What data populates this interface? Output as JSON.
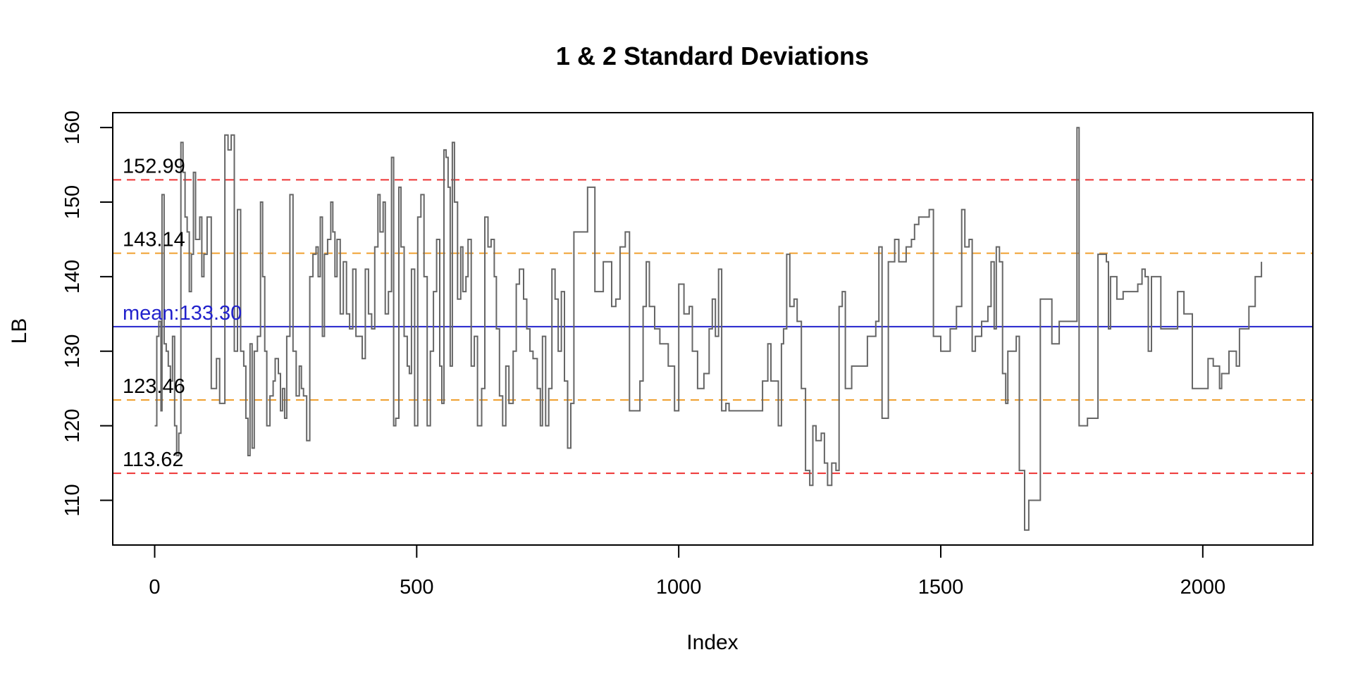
{
  "chart_data": {
    "type": "line",
    "title": "1 & 2 Standard Deviations",
    "xlabel": "Index",
    "ylabel": "LB",
    "xlim": [
      -80,
      2210
    ],
    "ylim": [
      104,
      162
    ],
    "x_ticks": [
      0,
      500,
      1000,
      1500,
      2000
    ],
    "y_ticks": [
      110,
      120,
      130,
      140,
      150,
      160
    ],
    "grid": false,
    "legend": "none",
    "series": [
      {
        "color": "#666666",
        "style": "step",
        "points": [
          [
            0,
            120
          ],
          [
            4,
            132
          ],
          [
            8,
            134
          ],
          [
            12,
            122
          ],
          [
            14,
            151
          ],
          [
            18,
            131
          ],
          [
            22,
            130
          ],
          [
            26,
            128
          ],
          [
            30,
            126
          ],
          [
            34,
            132
          ],
          [
            38,
            120
          ],
          [
            42,
            116
          ],
          [
            46,
            119
          ],
          [
            50,
            158
          ],
          [
            54,
            154
          ],
          [
            58,
            148
          ],
          [
            62,
            146
          ],
          [
            66,
            138
          ],
          [
            70,
            143
          ],
          [
            74,
            154
          ],
          [
            78,
            145
          ],
          [
            86,
            148
          ],
          [
            90,
            140
          ],
          [
            94,
            143
          ],
          [
            100,
            148
          ],
          [
            108,
            125
          ],
          [
            118,
            129
          ],
          [
            124,
            123
          ],
          [
            130,
            123
          ],
          [
            134,
            159
          ],
          [
            140,
            157
          ],
          [
            146,
            159
          ],
          [
            152,
            130
          ],
          [
            158,
            149
          ],
          [
            164,
            130
          ],
          [
            170,
            128
          ],
          [
            174,
            121
          ],
          [
            178,
            116
          ],
          [
            182,
            131
          ],
          [
            186,
            117
          ],
          [
            190,
            130
          ],
          [
            196,
            132
          ],
          [
            202,
            150
          ],
          [
            206,
            140
          ],
          [
            210,
            130
          ],
          [
            214,
            120
          ],
          [
            220,
            124
          ],
          [
            226,
            126
          ],
          [
            230,
            129
          ],
          [
            236,
            127
          ],
          [
            240,
            122
          ],
          [
            244,
            125
          ],
          [
            248,
            121
          ],
          [
            252,
            132
          ],
          [
            258,
            151
          ],
          [
            264,
            130
          ],
          [
            270,
            124
          ],
          [
            276,
            128
          ],
          [
            280,
            125
          ],
          [
            284,
            124
          ],
          [
            290,
            118
          ],
          [
            296,
            140
          ],
          [
            302,
            143
          ],
          [
            308,
            144
          ],
          [
            312,
            140
          ],
          [
            316,
            148
          ],
          [
            320,
            132
          ],
          [
            324,
            143
          ],
          [
            330,
            145
          ],
          [
            336,
            150
          ],
          [
            340,
            146
          ],
          [
            344,
            140
          ],
          [
            348,
            145
          ],
          [
            354,
            135
          ],
          [
            360,
            142
          ],
          [
            366,
            135
          ],
          [
            372,
            133
          ],
          [
            378,
            141
          ],
          [
            384,
            132
          ],
          [
            390,
            132
          ],
          [
            396,
            129
          ],
          [
            402,
            141
          ],
          [
            408,
            135
          ],
          [
            414,
            133
          ],
          [
            420,
            144
          ],
          [
            426,
            151
          ],
          [
            430,
            146
          ],
          [
            436,
            150
          ],
          [
            440,
            135
          ],
          [
            446,
            138
          ],
          [
            452,
            156
          ],
          [
            456,
            120
          ],
          [
            460,
            121
          ],
          [
            466,
            152
          ],
          [
            470,
            144
          ],
          [
            476,
            132
          ],
          [
            482,
            128
          ],
          [
            486,
            127
          ],
          [
            490,
            141
          ],
          [
            496,
            120
          ],
          [
            502,
            148
          ],
          [
            508,
            151
          ],
          [
            514,
            140
          ],
          [
            520,
            120
          ],
          [
            526,
            130
          ],
          [
            532,
            138
          ],
          [
            538,
            145
          ],
          [
            544,
            128
          ],
          [
            548,
            123
          ],
          [
            552,
            157
          ],
          [
            556,
            156
          ],
          [
            560,
            152
          ],
          [
            564,
            128
          ],
          [
            568,
            158
          ],
          [
            572,
            150
          ],
          [
            578,
            137
          ],
          [
            584,
            144
          ],
          [
            588,
            138
          ],
          [
            594,
            140
          ],
          [
            598,
            145
          ],
          [
            604,
            128
          ],
          [
            610,
            132
          ],
          [
            616,
            120
          ],
          [
            624,
            125
          ],
          [
            630,
            148
          ],
          [
            636,
            144
          ],
          [
            642,
            145
          ],
          [
            648,
            140
          ],
          [
            652,
            133
          ],
          [
            658,
            124
          ],
          [
            664,
            120
          ],
          [
            670,
            128
          ],
          [
            676,
            123
          ],
          [
            684,
            130
          ],
          [
            690,
            139
          ],
          [
            696,
            141
          ],
          [
            704,
            137
          ],
          [
            710,
            133
          ],
          [
            716,
            130
          ],
          [
            722,
            129
          ],
          [
            730,
            125
          ],
          [
            736,
            120
          ],
          [
            740,
            132
          ],
          [
            746,
            120
          ],
          [
            752,
            125
          ],
          [
            758,
            141
          ],
          [
            764,
            137
          ],
          [
            770,
            130
          ],
          [
            776,
            138
          ],
          [
            782,
            126
          ],
          [
            788,
            117
          ],
          [
            794,
            123
          ],
          [
            800,
            146
          ],
          [
            810,
            146
          ],
          [
            826,
            152
          ],
          [
            840,
            138
          ],
          [
            856,
            142
          ],
          [
            866,
            142
          ],
          [
            872,
            136
          ],
          [
            880,
            137
          ],
          [
            888,
            144
          ],
          [
            898,
            146
          ],
          [
            906,
            122
          ],
          [
            926,
            126
          ],
          [
            932,
            136
          ],
          [
            938,
            142
          ],
          [
            944,
            136
          ],
          [
            954,
            133
          ],
          [
            964,
            131
          ],
          [
            980,
            128
          ],
          [
            992,
            122
          ],
          [
            1000,
            139
          ],
          [
            1010,
            135
          ],
          [
            1020,
            136
          ],
          [
            1026,
            130
          ],
          [
            1036,
            125
          ],
          [
            1048,
            127
          ],
          [
            1058,
            133
          ],
          [
            1064,
            137
          ],
          [
            1070,
            132
          ],
          [
            1076,
            141
          ],
          [
            1082,
            122
          ],
          [
            1090,
            123
          ],
          [
            1096,
            122
          ],
          [
            1160,
            126
          ],
          [
            1170,
            131
          ],
          [
            1176,
            126
          ],
          [
            1190,
            120
          ],
          [
            1196,
            131
          ],
          [
            1200,
            133
          ],
          [
            1206,
            143
          ],
          [
            1212,
            136
          ],
          [
            1220,
            137
          ],
          [
            1226,
            134
          ],
          [
            1234,
            125
          ],
          [
            1242,
            114
          ],
          [
            1250,
            112
          ],
          [
            1256,
            120
          ],
          [
            1262,
            118
          ],
          [
            1272,
            119
          ],
          [
            1278,
            115
          ],
          [
            1284,
            112
          ],
          [
            1292,
            115
          ],
          [
            1300,
            114
          ],
          [
            1306,
            136
          ],
          [
            1312,
            138
          ],
          [
            1318,
            125
          ],
          [
            1330,
            128
          ],
          [
            1360,
            132
          ],
          [
            1376,
            134
          ],
          [
            1382,
            144
          ],
          [
            1388,
            121
          ],
          [
            1400,
            142
          ],
          [
            1412,
            145
          ],
          [
            1420,
            142
          ],
          [
            1434,
            144
          ],
          [
            1444,
            145
          ],
          [
            1450,
            147
          ],
          [
            1458,
            148
          ],
          [
            1478,
            149
          ],
          [
            1486,
            132
          ],
          [
            1500,
            130
          ],
          [
            1518,
            133
          ],
          [
            1530,
            136
          ],
          [
            1540,
            149
          ],
          [
            1546,
            144
          ],
          [
            1554,
            145
          ],
          [
            1560,
            130
          ],
          [
            1566,
            132
          ],
          [
            1578,
            134
          ],
          [
            1590,
            136
          ],
          [
            1596,
            142
          ],
          [
            1602,
            133
          ],
          [
            1606,
            144
          ],
          [
            1612,
            142
          ],
          [
            1618,
            127
          ],
          [
            1624,
            123
          ],
          [
            1628,
            130
          ],
          [
            1644,
            132
          ],
          [
            1650,
            114
          ],
          [
            1660,
            106
          ],
          [
            1668,
            110
          ],
          [
            1690,
            137
          ],
          [
            1712,
            131
          ],
          [
            1726,
            134
          ],
          [
            1760,
            160
          ],
          [
            1764,
            120
          ],
          [
            1780,
            121
          ],
          [
            1800,
            143
          ],
          [
            1816,
            142
          ],
          [
            1820,
            133
          ],
          [
            1824,
            140
          ],
          [
            1836,
            137
          ],
          [
            1848,
            138
          ],
          [
            1876,
            139
          ],
          [
            1884,
            141
          ],
          [
            1890,
            140
          ],
          [
            1896,
            130
          ],
          [
            1902,
            140
          ],
          [
            1920,
            133
          ],
          [
            1952,
            138
          ],
          [
            1964,
            135
          ],
          [
            1980,
            125
          ],
          [
            2010,
            129
          ],
          [
            2020,
            128
          ],
          [
            2032,
            125
          ],
          [
            2036,
            127
          ],
          [
            2050,
            130
          ],
          [
            2064,
            128
          ],
          [
            2070,
            133
          ],
          [
            2088,
            136
          ],
          [
            2100,
            140
          ],
          [
            2112,
            142
          ]
        ]
      }
    ],
    "reference_lines": [
      {
        "label": "152.99",
        "value": 152.99,
        "color": "#ee3333",
        "style": "dashed"
      },
      {
        "label": "143.14",
        "value": 143.14,
        "color": "#f0a030",
        "style": "dashed"
      },
      {
        "label": "mean:133.30",
        "value": 133.3,
        "color": "#2222cc",
        "style": "solid"
      },
      {
        "label": "123.46",
        "value": 123.46,
        "color": "#f0a030",
        "style": "dashed"
      },
      {
        "label": "113.62",
        "value": 113.62,
        "color": "#ee3333",
        "style": "dashed"
      }
    ]
  }
}
